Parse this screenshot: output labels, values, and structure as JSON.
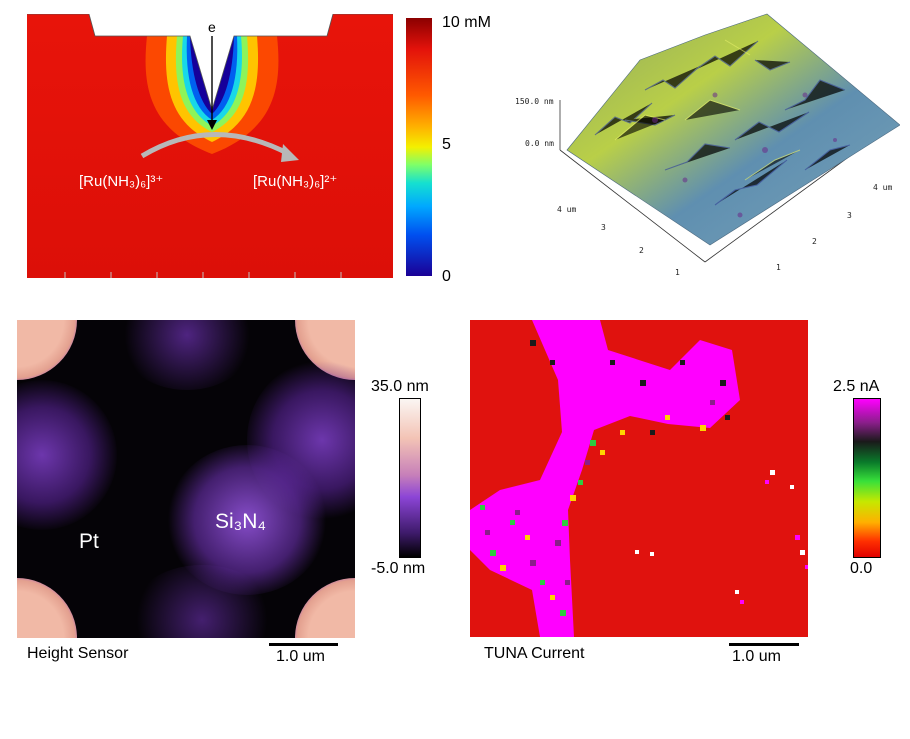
{
  "simulation": {
    "electron_label": "e",
    "oxidized_species": "[Ru(NH₃)₆]³⁺",
    "reduced_species": "[Ru(NH₃)₆]²⁺",
    "colorbar": {
      "top": "10 mM",
      "mid": "5",
      "bottom": "0"
    }
  },
  "afm_3d": {
    "z_labels": [
      "150.0 nm",
      "0.0 nm"
    ],
    "left_axis_ticks": [
      "4 um",
      "3",
      "2",
      "1"
    ],
    "right_axis_ticks": [
      "4 um",
      "3",
      "2",
      "1"
    ]
  },
  "height_sensor": {
    "pt_label": "Pt",
    "si3n4_label": "Si₃N₄",
    "colorbar": {
      "top": "35.0 nm",
      "bottom": "-5.0 nm"
    },
    "caption": "Height Sensor",
    "scale_label": "1.0 um"
  },
  "tuna_current": {
    "colorbar": {
      "top": "2.5 nA",
      "bottom": "0.0"
    },
    "caption": "TUNA Current",
    "scale_label": "1.0 um"
  },
  "colors": {
    "sim_background": "#e3120b",
    "height_background": "#050307",
    "tuna_background": "#e0120e",
    "tuna_high": "#ff00ff"
  }
}
